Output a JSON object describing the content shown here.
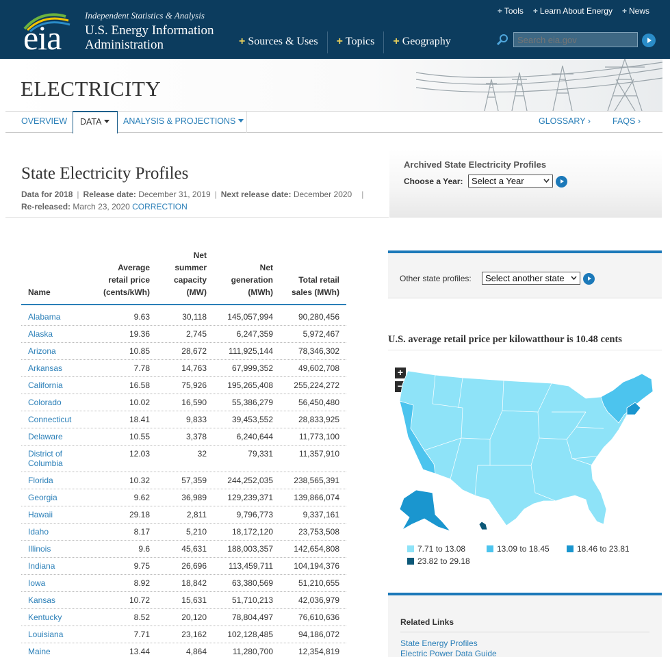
{
  "header": {
    "tagline": "Independent Statistics & Analysis",
    "agency_line1": "U.S. Energy Information",
    "agency_line2": "Administration",
    "logo_text": "eia",
    "toplinks": [
      "Tools",
      "Learn About Energy",
      "News"
    ],
    "mainnav": [
      "Sources & Uses",
      "Topics",
      "Geography"
    ],
    "search_placeholder": "Search eia.gov"
  },
  "banner": {
    "title": "ELECTRICITY"
  },
  "subnav": {
    "overview": "OVERVIEW",
    "data": "DATA",
    "analysis": "ANALYSIS & PROJECTIONS",
    "glossary": "GLOSSARY ›",
    "faqs": "FAQS ›"
  },
  "page": {
    "title": "State Electricity Profiles",
    "data_for": "Data for 2018",
    "release_label": "Release date:",
    "release_date": "December 31, 2019",
    "next_label": "Next release date:",
    "next_date": "December 2020",
    "rereleased_label": "Re-released:",
    "rereleased_date": "March 23, 2020",
    "correction": "CORRECTION"
  },
  "archived": {
    "heading": "Archived State Electricity Profiles",
    "choose_label": "Choose a Year:",
    "select_value": "Select a Year"
  },
  "table": {
    "headers": {
      "name": "Name",
      "price": [
        "Average",
        "retail price",
        "(cents/kWh)"
      ],
      "capacity": [
        "Net",
        "summer",
        "capacity",
        "(MW)"
      ],
      "generation": [
        "Net",
        "generation",
        "(MWh)"
      ],
      "sales": [
        "Total retail",
        "sales (MWh)"
      ]
    },
    "rows": [
      {
        "name": "Alabama",
        "price": "9.63",
        "capacity": "30,118",
        "generation": "145,057,994",
        "sales": "90,280,456"
      },
      {
        "name": "Alaska",
        "price": "19.36",
        "capacity": "2,745",
        "generation": "6,247,359",
        "sales": "5,972,467"
      },
      {
        "name": "Arizona",
        "price": "10.85",
        "capacity": "28,672",
        "generation": "111,925,144",
        "sales": "78,346,302"
      },
      {
        "name": "Arkansas",
        "price": "7.78",
        "capacity": "14,763",
        "generation": "67,999,352",
        "sales": "49,602,708"
      },
      {
        "name": "California",
        "price": "16.58",
        "capacity": "75,926",
        "generation": "195,265,408",
        "sales": "255,224,272"
      },
      {
        "name": "Colorado",
        "price": "10.02",
        "capacity": "16,590",
        "generation": "55,386,279",
        "sales": "56,450,480"
      },
      {
        "name": "Connecticut",
        "price": "18.41",
        "capacity": "9,833",
        "generation": "39,453,552",
        "sales": "28,833,925"
      },
      {
        "name": "Delaware",
        "price": "10.55",
        "capacity": "3,378",
        "generation": "6,240,644",
        "sales": "11,773,100"
      },
      {
        "name": "District of\nColumbia",
        "price": "12.03",
        "capacity": "32",
        "generation": "79,331",
        "sales": "11,357,910"
      },
      {
        "name": "Florida",
        "price": "10.32",
        "capacity": "57,359",
        "generation": "244,252,035",
        "sales": "238,565,391"
      },
      {
        "name": "Georgia",
        "price": "9.62",
        "capacity": "36,989",
        "generation": "129,239,371",
        "sales": "139,866,074"
      },
      {
        "name": "Hawaii",
        "price": "29.18",
        "capacity": "2,811",
        "generation": "9,796,773",
        "sales": "9,337,161"
      },
      {
        "name": "Idaho",
        "price": "8.17",
        "capacity": "5,210",
        "generation": "18,172,120",
        "sales": "23,753,508"
      },
      {
        "name": "Illinois",
        "price": "9.6",
        "capacity": "45,631",
        "generation": "188,003,357",
        "sales": "142,654,808"
      },
      {
        "name": "Indiana",
        "price": "9.75",
        "capacity": "26,696",
        "generation": "113,459,711",
        "sales": "104,194,376"
      },
      {
        "name": "Iowa",
        "price": "8.92",
        "capacity": "18,842",
        "generation": "63,380,569",
        "sales": "51,210,655"
      },
      {
        "name": "Kansas",
        "price": "10.72",
        "capacity": "15,631",
        "generation": "51,710,213",
        "sales": "42,036,979"
      },
      {
        "name": "Kentucky",
        "price": "8.52",
        "capacity": "20,120",
        "generation": "78,804,497",
        "sales": "76,610,636"
      },
      {
        "name": "Louisiana",
        "price": "7.71",
        "capacity": "23,162",
        "generation": "102,128,485",
        "sales": "94,186,072"
      },
      {
        "name": "Maine",
        "price": "13.44",
        "capacity": "4,864",
        "generation": "11,280,700",
        "sales": "12,354,819"
      }
    ]
  },
  "other": {
    "label": "Other state profiles:",
    "select_value": "Select another state"
  },
  "map": {
    "title": "U.S. average retail price per kilowatthour is 10.48 cents",
    "zoom_in": "+",
    "zoom_out": "−",
    "legend": [
      {
        "label": "7.71 to 13.08",
        "color": "#8ee3f8"
      },
      {
        "label": "13.09 to 18.45",
        "color": "#4cc4ee"
      },
      {
        "label": "18.46 to 23.81",
        "color": "#1a96cf"
      },
      {
        "label": "23.82 to 29.18",
        "color": "#0c5878"
      }
    ]
  },
  "related": {
    "heading": "Related Links",
    "links": [
      "State Energy Profiles",
      "Electric Power Data Guide"
    ]
  }
}
